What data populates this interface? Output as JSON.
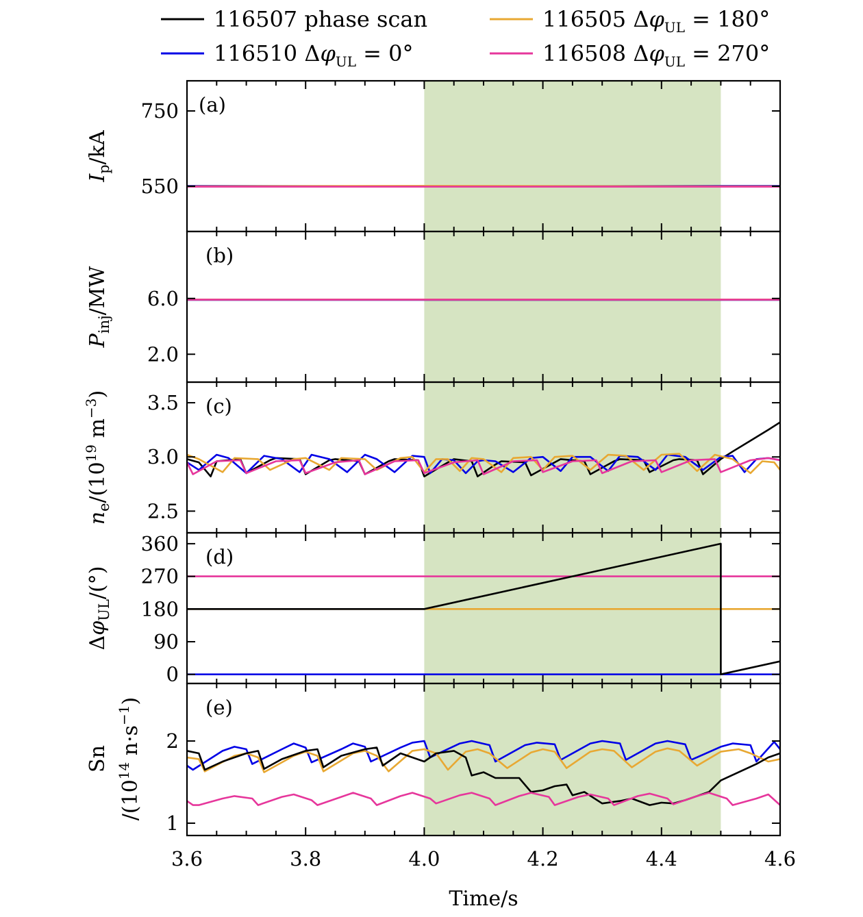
{
  "chart_data": {
    "type": "line",
    "xlabel": "Time/s",
    "xlim": [
      3.6,
      4.6
    ],
    "xticks": [
      "3.6",
      "3.8",
      "4.0",
      "4.2",
      "4.4",
      "4.6"
    ],
    "shaded_interval": [
      4.0,
      4.5
    ],
    "shade_color": "#d6e4c2",
    "legend": {
      "placement": "top",
      "entries": [
        {
          "key": "s507",
          "label": "116507 phase scan"
        },
        {
          "key": "s510",
          "label": "116510 ΔφUL = 0°"
        },
        {
          "key": "s505",
          "label": "116505 ΔφUL = 180°"
        },
        {
          "key": "s508",
          "label": "116508 ΔφUL = 270°"
        }
      ]
    },
    "series_colors": {
      "s507": "#000000",
      "s510": "#0000e6",
      "s505": "#e8a832",
      "s508": "#e6369b"
    },
    "panels": [
      {
        "id": "a",
        "tag": "(a)",
        "ylabel": "Ip/kA",
        "ylim": [
          430,
          830
        ],
        "yticks": [
          {
            "v": 550,
            "label": "550"
          },
          {
            "v": 750,
            "label": "750"
          }
        ],
        "series": [
          {
            "key": "s507",
            "x": [
              3.6,
              4.0,
              4.5,
              4.6
            ],
            "y": [
              550,
              550,
              550,
              550
            ]
          },
          {
            "key": "s510",
            "x": [
              3.6,
              4.0,
              4.5,
              4.6
            ],
            "y": [
              551,
              550,
              551,
              551
            ]
          },
          {
            "key": "s505",
            "x": [
              3.6,
              4.0,
              4.5,
              4.6
            ],
            "y": [
              550,
              551,
              550,
              550
            ]
          },
          {
            "key": "s508",
            "x": [
              3.6,
              4.0,
              4.5,
              4.6
            ],
            "y": [
              549,
              549,
              549,
              549
            ]
          }
        ]
      },
      {
        "id": "b",
        "tag": "(b)",
        "ylabel": "Pinj/MW",
        "ylim": [
          0,
          10.8
        ],
        "yticks": [
          {
            "v": 2.0,
            "label": "2.0"
          },
          {
            "v": 6.0,
            "label": "6.0"
          }
        ],
        "series": [
          {
            "key": "s507",
            "x": [
              3.6,
              4.0,
              4.5,
              4.6
            ],
            "y": [
              5.9,
              5.9,
              5.9,
              5.9
            ]
          },
          {
            "key": "s510",
            "x": [
              3.6,
              4.0,
              4.5,
              4.6
            ],
            "y": [
              5.9,
              5.9,
              5.9,
              5.9
            ]
          },
          {
            "key": "s505",
            "x": [
              3.6,
              4.0,
              4.5,
              4.6
            ],
            "y": [
              5.92,
              5.92,
              5.92,
              5.92
            ]
          },
          {
            "key": "s508",
            "x": [
              3.6,
              4.0,
              4.5,
              4.6
            ],
            "y": [
              5.91,
              5.91,
              5.91,
              5.91
            ]
          }
        ]
      },
      {
        "id": "c",
        "tag": "(c)",
        "ylabel": "ne/(10^19 m^-3)",
        "ylim": [
          2.3,
          3.69
        ],
        "yticks": [
          {
            "v": 2.5,
            "label": "2.5"
          },
          {
            "v": 3.0,
            "label": "3.0"
          },
          {
            "v": 3.5,
            "label": "3.5"
          }
        ],
        "series": [
          {
            "key": "s507",
            "x": [
              3.6,
              3.62,
              3.64,
              3.65,
              3.69,
              3.7,
              3.74,
              3.75,
              3.79,
              3.8,
              3.84,
              3.85,
              3.89,
              3.9,
              3.94,
              3.95,
              3.99,
              4.0,
              4.04,
              4.05,
              4.08,
              4.09,
              4.12,
              4.13,
              4.17,
              4.18,
              4.22,
              4.23,
              4.27,
              4.28,
              4.32,
              4.33,
              4.37,
              4.38,
              4.42,
              4.43,
              4.46,
              4.47,
              4.5,
              4.52,
              4.55,
              4.58,
              4.6
            ],
            "y": [
              2.98,
              2.95,
              2.82,
              2.96,
              2.98,
              2.85,
              2.97,
              2.99,
              2.98,
              2.84,
              2.97,
              2.98,
              2.96,
              2.84,
              2.96,
              2.98,
              2.97,
              2.82,
              2.95,
              2.98,
              2.96,
              2.82,
              2.93,
              2.96,
              2.95,
              2.83,
              2.95,
              2.98,
              2.96,
              2.84,
              2.96,
              2.98,
              2.97,
              2.86,
              2.97,
              2.98,
              2.97,
              2.84,
              2.98,
              3.05,
              3.15,
              3.25,
              3.32
            ]
          },
          {
            "key": "s510",
            "x": [
              3.6,
              3.62,
              3.65,
              3.67,
              3.7,
              3.73,
              3.76,
              3.79,
              3.81,
              3.84,
              3.87,
              3.9,
              3.92,
              3.95,
              3.98,
              4.0,
              4.01,
              4.03,
              4.05,
              4.07,
              4.09,
              4.1,
              4.12,
              4.15,
              4.18,
              4.2,
              4.23,
              4.25,
              4.28,
              4.31,
              4.33,
              4.36,
              4.39,
              4.41,
              4.44,
              4.47,
              4.5,
              4.52,
              4.54,
              4.56,
              4.58,
              4.6
            ],
            "y": [
              2.95,
              2.88,
              3.02,
              2.99,
              2.85,
              3.01,
              2.98,
              2.86,
              3.02,
              2.98,
              2.86,
              3.02,
              2.98,
              2.86,
              3.01,
              3.0,
              2.85,
              2.98,
              2.97,
              2.85,
              2.96,
              2.97,
              2.96,
              2.86,
              2.99,
              3.0,
              2.87,
              3.0,
              3.0,
              2.87,
              3.01,
              3.0,
              2.88,
              3.02,
              3.0,
              2.88,
              3.0,
              3.01,
              2.86,
              2.98,
              2.99,
              2.97
            ]
          },
          {
            "key": "s505",
            "x": [
              3.6,
              3.62,
              3.66,
              3.68,
              3.72,
              3.74,
              3.78,
              3.8,
              3.84,
              3.86,
              3.9,
              3.92,
              3.96,
              3.98,
              4.0,
              4.02,
              4.04,
              4.06,
              4.08,
              4.1,
              4.13,
              4.15,
              4.18,
              4.2,
              4.22,
              4.25,
              4.28,
              4.31,
              4.34,
              4.37,
              4.4,
              4.43,
              4.46,
              4.49,
              4.52,
              4.55,
              4.57,
              4.59,
              4.6
            ],
            "y": [
              3.02,
              2.98,
              2.86,
              2.99,
              2.98,
              2.88,
              2.98,
              2.99,
              2.88,
              2.99,
              2.98,
              2.88,
              2.99,
              3.0,
              2.86,
              2.98,
              2.98,
              2.87,
              2.99,
              2.98,
              2.86,
              2.99,
              3.0,
              2.88,
              3.0,
              3.01,
              2.88,
              3.02,
              3.01,
              2.88,
              3.02,
              3.03,
              2.87,
              3.02,
              2.98,
              2.85,
              2.96,
              2.95,
              2.88
            ]
          },
          {
            "key": "s508",
            "x": [
              3.6,
              3.61,
              3.65,
              3.69,
              3.7,
              3.75,
              3.79,
              3.8,
              3.85,
              3.89,
              3.9,
              3.95,
              3.99,
              4.0,
              4.05,
              4.09,
              4.1,
              4.15,
              4.19,
              4.2,
              4.25,
              4.29,
              4.3,
              4.35,
              4.39,
              4.4,
              4.45,
              4.49,
              4.5,
              4.55,
              4.58,
              4.6
            ],
            "y": [
              2.95,
              2.84,
              2.96,
              2.97,
              2.85,
              2.96,
              2.97,
              2.85,
              2.95,
              2.97,
              2.84,
              2.96,
              2.97,
              2.85,
              2.95,
              2.97,
              2.84,
              2.96,
              2.97,
              2.86,
              2.96,
              2.97,
              2.85,
              2.96,
              2.97,
              2.86,
              2.97,
              2.98,
              2.86,
              2.97,
              2.99,
              2.97
            ]
          }
        ]
      },
      {
        "id": "d",
        "tag": "(d)",
        "ylabel": "ΔφUL/(°)",
        "ylim": [
          -25,
          390
        ],
        "yticks": [
          {
            "v": 0,
            "label": "0"
          },
          {
            "v": 90,
            "label": "90"
          },
          {
            "v": 180,
            "label": "180"
          },
          {
            "v": 270,
            "label": "270"
          },
          {
            "v": 360,
            "label": "360"
          }
        ],
        "series": [
          {
            "key": "s505",
            "x": [
              3.6,
              4.6
            ],
            "y": [
              180,
              180
            ]
          },
          {
            "key": "s508",
            "x": [
              3.6,
              4.6
            ],
            "y": [
              270,
              270
            ]
          },
          {
            "key": "s510",
            "x": [
              3.6,
              4.6
            ],
            "y": [
              0,
              0
            ]
          },
          {
            "key": "s507",
            "x": [
              3.6,
              4.0,
              4.5,
              4.5,
              4.6
            ],
            "y": [
              180,
              180,
              360,
              0,
              36
            ]
          }
        ]
      },
      {
        "id": "e",
        "tag": "(e)",
        "ylabel": "Sn /(10^14 n·s^-1)",
        "ylim": [
          0.85,
          2.7
        ],
        "yticks": [
          {
            "v": 1,
            "label": "1"
          },
          {
            "v": 2,
            "label": "2"
          }
        ],
        "series": [
          {
            "key": "s510",
            "x": [
              3.6,
              3.61,
              3.66,
              3.68,
              3.7,
              3.71,
              3.76,
              3.78,
              3.8,
              3.81,
              3.86,
              3.88,
              3.9,
              3.91,
              3.96,
              3.98,
              4.0,
              4.01,
              4.06,
              4.08,
              4.11,
              4.12,
              4.17,
              4.19,
              4.22,
              4.23,
              4.28,
              4.3,
              4.33,
              4.34,
              4.39,
              4.41,
              4.44,
              4.45,
              4.5,
              4.52,
              4.55,
              4.56,
              4.59,
              4.6
            ],
            "y": [
              1.7,
              1.65,
              1.88,
              1.93,
              1.9,
              1.72,
              1.9,
              1.97,
              1.92,
              1.74,
              1.9,
              1.97,
              1.93,
              1.75,
              1.92,
              1.98,
              2.0,
              1.8,
              1.97,
              2.0,
              1.95,
              1.75,
              1.95,
              1.98,
              1.96,
              1.77,
              1.97,
              2.0,
              1.97,
              1.77,
              1.97,
              2.0,
              1.96,
              1.77,
              1.93,
              1.97,
              1.95,
              1.75,
              1.99,
              1.9
            ]
          },
          {
            "key": "s505",
            "x": [
              3.6,
              3.62,
              3.63,
              3.68,
              3.7,
              3.72,
              3.73,
              3.78,
              3.8,
              3.82,
              3.83,
              3.88,
              3.9,
              3.92,
              3.94,
              3.98,
              4.0,
              4.02,
              4.04,
              4.07,
              4.09,
              4.11,
              4.14,
              4.18,
              4.2,
              4.22,
              4.24,
              4.28,
              4.3,
              4.32,
              4.35,
              4.39,
              4.41,
              4.43,
              4.46,
              4.5,
              4.53,
              4.55,
              4.58,
              4.6
            ],
            "y": [
              1.8,
              1.78,
              1.63,
              1.82,
              1.85,
              1.8,
              1.62,
              1.82,
              1.87,
              1.82,
              1.63,
              1.85,
              1.88,
              1.82,
              1.63,
              1.88,
              1.9,
              1.85,
              1.65,
              1.87,
              1.9,
              1.85,
              1.67,
              1.86,
              1.9,
              1.87,
              1.67,
              1.87,
              1.9,
              1.88,
              1.68,
              1.87,
              1.91,
              1.88,
              1.7,
              1.87,
              1.9,
              1.85,
              1.75,
              1.78
            ]
          },
          {
            "key": "s507",
            "x": [
              3.6,
              3.62,
              3.63,
              3.66,
              3.7,
              3.72,
              3.73,
              3.76,
              3.8,
              3.82,
              3.83,
              3.86,
              3.9,
              3.92,
              3.93,
              3.96,
              4.0,
              4.02,
              4.05,
              4.07,
              4.08,
              4.1,
              4.12,
              4.14,
              4.16,
              4.18,
              4.2,
              4.22,
              4.24,
              4.25,
              4.27,
              4.3,
              4.33,
              4.35,
              4.38,
              4.4,
              4.42,
              4.44,
              4.46,
              4.48,
              4.5,
              4.53,
              4.56,
              4.58,
              4.6
            ],
            "y": [
              1.88,
              1.85,
              1.65,
              1.75,
              1.85,
              1.88,
              1.66,
              1.78,
              1.88,
              1.9,
              1.68,
              1.82,
              1.9,
              1.92,
              1.7,
              1.85,
              1.75,
              1.85,
              1.88,
              1.8,
              1.58,
              1.62,
              1.55,
              1.55,
              1.55,
              1.38,
              1.4,
              1.45,
              1.47,
              1.34,
              1.38,
              1.24,
              1.27,
              1.3,
              1.22,
              1.25,
              1.24,
              1.28,
              1.33,
              1.38,
              1.52,
              1.62,
              1.72,
              1.8,
              1.85
            ]
          },
          {
            "key": "s508",
            "x": [
              3.6,
              3.61,
              3.62,
              3.66,
              3.68,
              3.71,
              3.72,
              3.76,
              3.78,
              3.81,
              3.82,
              3.86,
              3.88,
              3.91,
              3.92,
              3.96,
              3.98,
              4.01,
              4.02,
              4.06,
              4.08,
              4.11,
              4.12,
              4.16,
              4.18,
              4.21,
              4.22,
              4.26,
              4.28,
              4.31,
              4.32,
              4.36,
              4.38,
              4.41,
              4.42,
              4.46,
              4.48,
              4.51,
              4.52,
              4.56,
              4.58,
              4.6
            ],
            "y": [
              1.27,
              1.22,
              1.22,
              1.3,
              1.33,
              1.3,
              1.22,
              1.32,
              1.35,
              1.28,
              1.22,
              1.32,
              1.37,
              1.3,
              1.22,
              1.33,
              1.37,
              1.3,
              1.24,
              1.34,
              1.37,
              1.3,
              1.22,
              1.33,
              1.37,
              1.32,
              1.22,
              1.32,
              1.35,
              1.3,
              1.22,
              1.33,
              1.36,
              1.3,
              1.23,
              1.33,
              1.37,
              1.3,
              1.22,
              1.3,
              1.35,
              1.22
            ]
          }
        ]
      }
    ]
  }
}
